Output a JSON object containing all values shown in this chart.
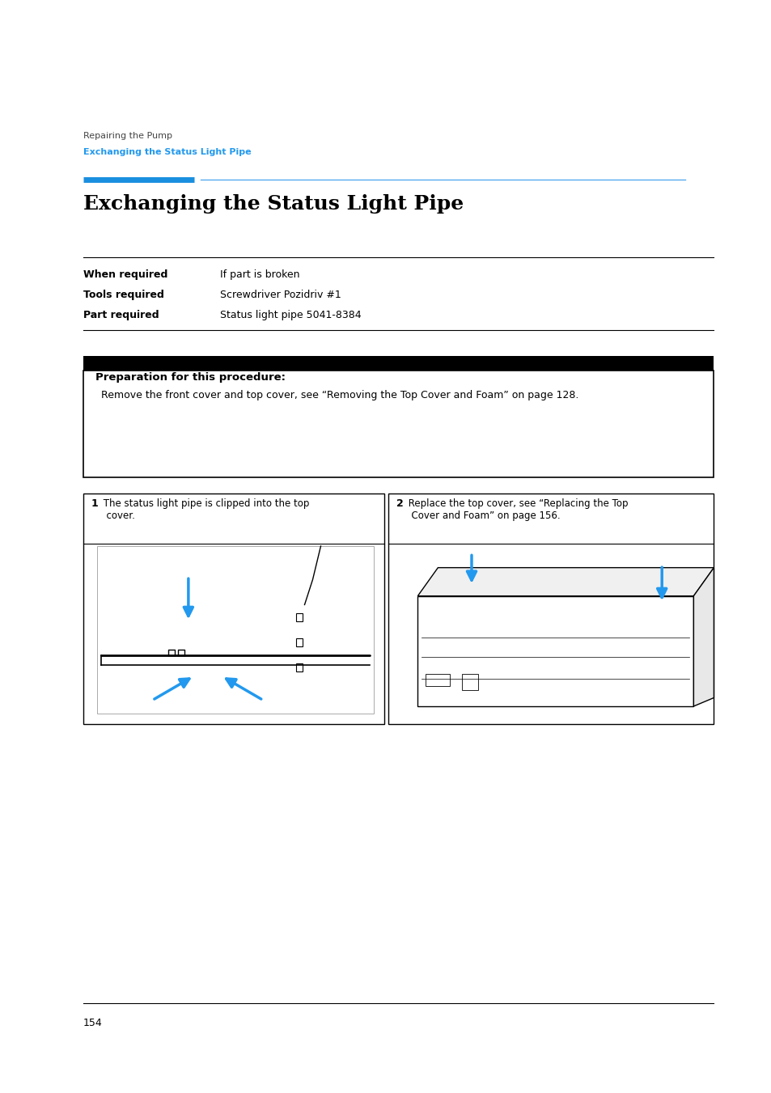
{
  "page_width": 9.54,
  "page_height": 13.51,
  "bg_color": "#ffffff",
  "breadcrumb_line1": "Repairing the Pump",
  "breadcrumb_line2": "Exchanging the Status Light Pipe",
  "breadcrumb_color": "#2299ee",
  "breadcrumb_gray": "#444444",
  "title_text": "Exchanging the Status Light Pipe",
  "blue_bar_color": "#1a8fe0",
  "thin_line_color": "#55aaee",
  "table_rows": [
    {
      "label": "When required",
      "value": "If part is broken"
    },
    {
      "label": "Tools required",
      "value": "Screwdriver Pozidriv #1"
    },
    {
      "label": "Part required",
      "value": "Status light pipe 5041-8384"
    }
  ],
  "prep_title": "Preparation for this procedure:",
  "prep_text": "Remove the front cover and top cover, see “Removing the Top Cover and Foam” on page 128.",
  "step1_num": "1",
  "step1_text": " The status light pipe is clipped into the top\n  cover.",
  "step2_num": "2",
  "step2_text": " Replace the top cover, see “Replacing the Top\n  Cover and Foam” on page 156.",
  "page_number": "154",
  "arrow_color": "#2299ee"
}
